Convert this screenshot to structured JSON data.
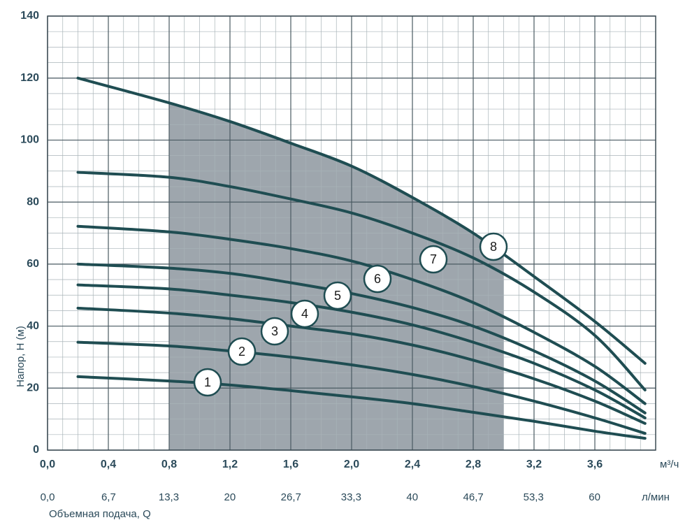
{
  "chart_data": {
    "type": "line",
    "y_label": "Напор, H (м)",
    "x_label": "Объемная подача, Q",
    "x_unit": "м³/ч",
    "x2_unit": "л/мин",
    "xlim": [
      0,
      4.0
    ],
    "xticks": [
      {
        "value": 0,
        "label": "0,0"
      },
      {
        "value": 0.4,
        "label": "0,4"
      },
      {
        "value": 0.8,
        "label": "0,8"
      },
      {
        "value": 1.2,
        "label": "1,2"
      },
      {
        "value": 1.6,
        "label": "1,6"
      },
      {
        "value": 2.0,
        "label": "2,0"
      },
      {
        "value": 2.4,
        "label": "2,4"
      },
      {
        "value": 2.8,
        "label": "2,8"
      },
      {
        "value": 3.2,
        "label": "3,2"
      },
      {
        "value": 3.6,
        "label": "3,6"
      }
    ],
    "x2lim": [
      0,
      66.7
    ],
    "x2ticks": [
      {
        "value": 0,
        "label": "0,0"
      },
      {
        "value": 6.7,
        "label": "6,7"
      },
      {
        "value": 13.3,
        "label": "13,3"
      },
      20,
      {
        "value": 26.7,
        "label": "26,7"
      },
      {
        "value": 33.3,
        "label": "33,3"
      },
      40,
      {
        "value": 46.7,
        "label": "46,7"
      },
      {
        "value": 53.3,
        "label": "53,3"
      },
      60
    ],
    "ylim": [
      0,
      140
    ],
    "yticks": [
      0,
      20,
      40,
      60,
      80,
      100,
      120,
      140
    ],
    "grid": true,
    "minor_grid": true,
    "shaded_range": [
      0.8,
      3.0
    ],
    "shade_color": "#9ea6ad",
    "x": [
      0.2,
      0.8,
      1.2,
      1.6,
      2.0,
      2.4,
      2.8,
      3.2,
      3.6,
      3.93
    ],
    "series": [
      {
        "name": "1",
        "color": "#1f4d52",
        "values": [
          23.7,
          22.3,
          21,
          19.2,
          17.2,
          15,
          12.2,
          9.3,
          6.1,
          3.8
        ]
      },
      {
        "name": "2",
        "color": "#1f4d52",
        "values": [
          34.8,
          33.6,
          32,
          30,
          27.5,
          24.4,
          20.5,
          15.8,
          10.4,
          5.4
        ]
      },
      {
        "name": "3",
        "color": "#1f4d52",
        "values": [
          45.8,
          44.2,
          42.4,
          40,
          37.5,
          33.9,
          29,
          23,
          15.8,
          8.6
        ]
      },
      {
        "name": "4",
        "color": "#1f4d52",
        "values": [
          53.3,
          52,
          50,
          47.6,
          44.5,
          40.4,
          34.8,
          28,
          19.4,
          10.4
        ]
      },
      {
        "name": "5",
        "color": "#1f4d52",
        "values": [
          60,
          58.7,
          57,
          54,
          50.5,
          46,
          40,
          32,
          22.3,
          12
        ]
      },
      {
        "name": "6",
        "color": "#1f4d52",
        "values": [
          72.2,
          70.4,
          68,
          65,
          61,
          55,
          47.6,
          38,
          27,
          15
        ]
      },
      {
        "name": "7",
        "color": "#1f4d52",
        "values": [
          89.6,
          88,
          85,
          81,
          76.5,
          70,
          62,
          51,
          37,
          19.4
        ]
      },
      {
        "name": "8",
        "color": "#1f4d52",
        "values": [
          120,
          112,
          106,
          99,
          91.6,
          81.5,
          70,
          56,
          41.5,
          28
        ]
      }
    ]
  }
}
